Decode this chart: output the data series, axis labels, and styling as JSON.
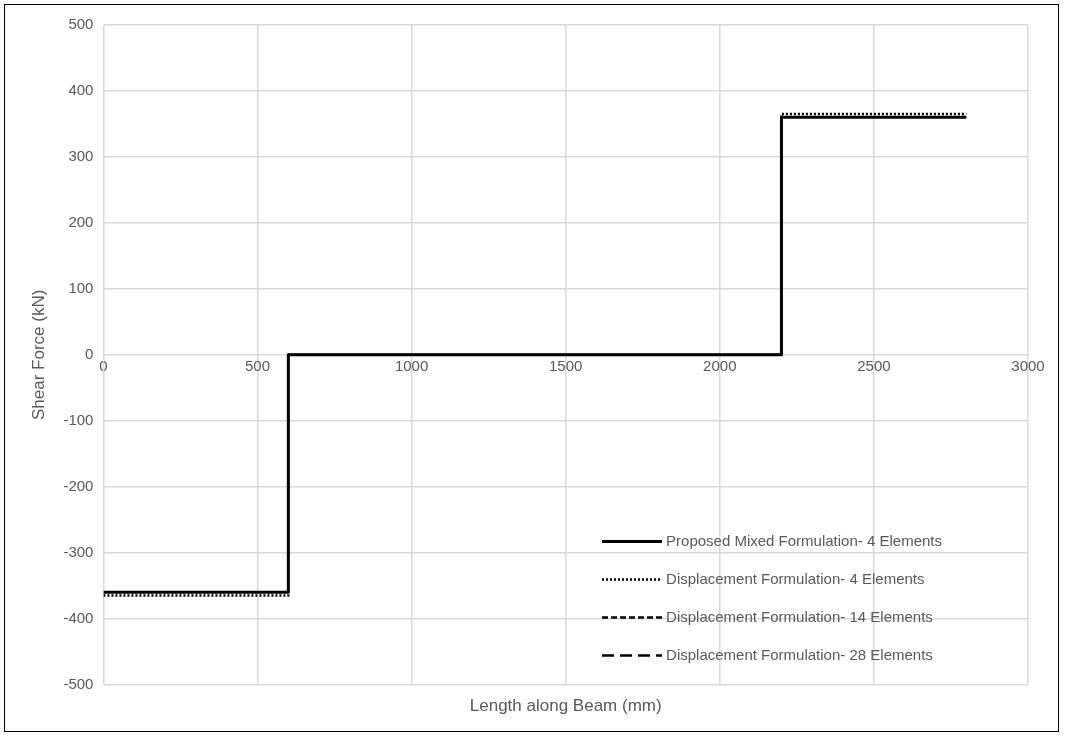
{
  "chart_data": {
    "type": "line",
    "xlabel": "Length along Beam (mm)",
    "ylabel": "Shear Force (kN)",
    "xlim": [
      0,
      3000
    ],
    "xticks": [
      0,
      500,
      1000,
      1500,
      2000,
      2500,
      3000
    ],
    "ylim": [
      -500,
      500
    ],
    "yticks": [
      -500,
      -400,
      -300,
      -200,
      -100,
      0,
      100,
      200,
      300,
      400,
      500
    ],
    "grid": true,
    "legend": "bottom right",
    "marker": "none",
    "series": [
      {
        "name": "Proposed Mixed Formulation- 4 Elements",
        "color": "#000000",
        "line_style": "solid",
        "x": [
          0,
          600,
          600,
          2200,
          2200,
          2800
        ],
        "values": [
          -360,
          -360,
          0,
          0,
          360,
          360
        ]
      },
      {
        "name": "Displacement Formulation- 4 Elements",
        "color": "#000000",
        "line_style": "dotted",
        "x": [
          0,
          600,
          600,
          2200,
          2200,
          2800
        ],
        "values": [
          -365,
          -365,
          0,
          0,
          365,
          365
        ]
      },
      {
        "name": "Displacement Formulation- 14 Elements",
        "color": "#000000",
        "line_style": "dashed"
      },
      {
        "name": "Displacement Formulation- 28 Elements",
        "color": "#000000",
        "line_style": "dashed"
      }
    ]
  }
}
